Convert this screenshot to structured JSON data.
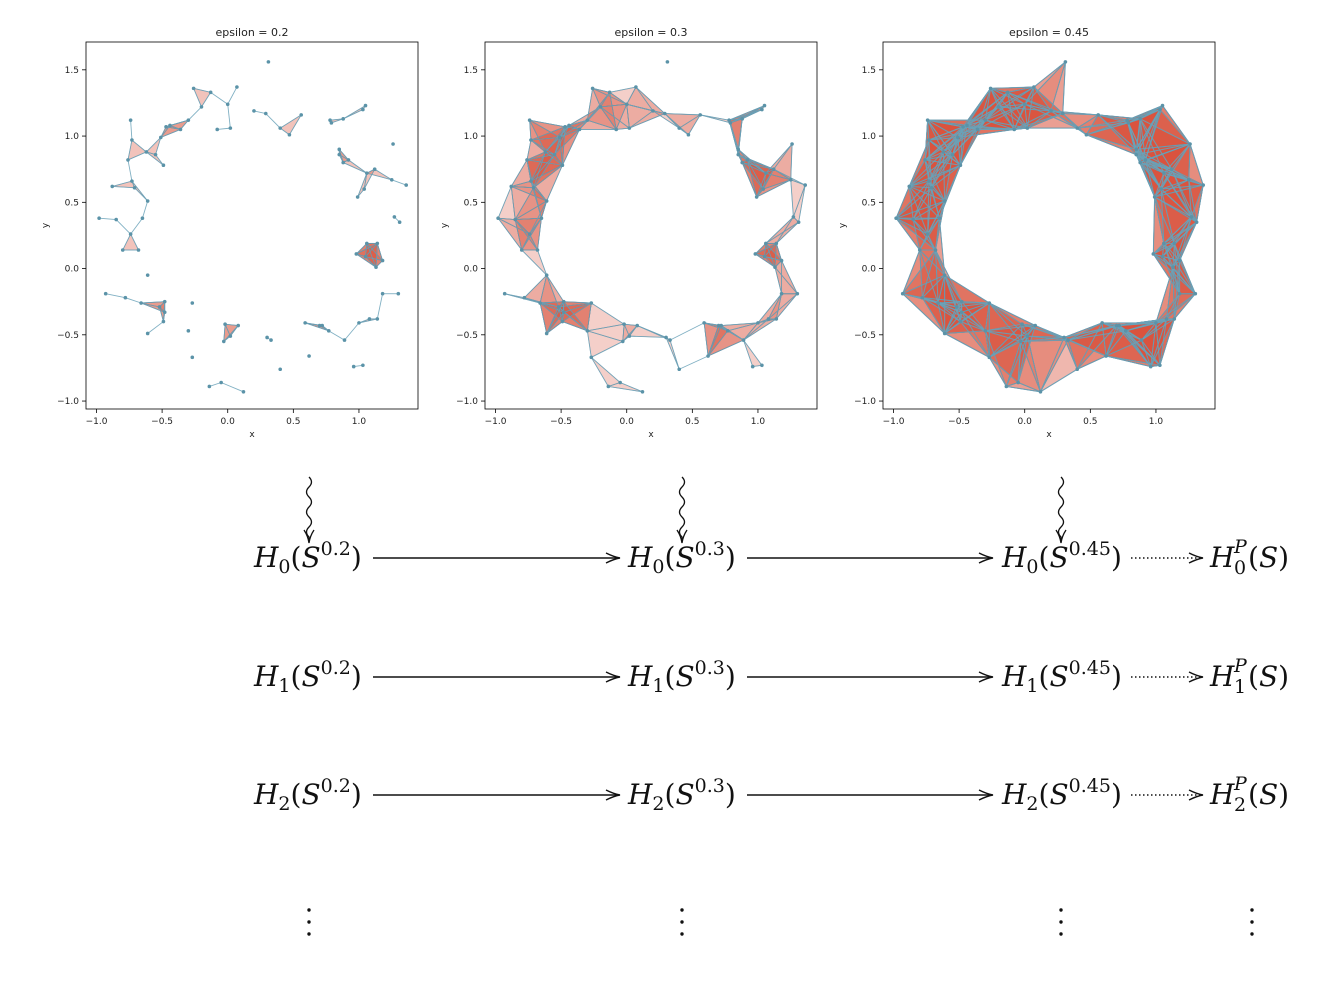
{
  "figure": {
    "panels": [
      {
        "title": "epsilon = 0.2",
        "xlabel": "x",
        "ylabel": "y",
        "epsilon": 0.2
      },
      {
        "title": "epsilon = 0.3",
        "xlabel": "x",
        "ylabel": "y",
        "epsilon": 0.3
      },
      {
        "title": "epsilon = 0.45",
        "xlabel": "x",
        "ylabel": "y",
        "epsilon": 0.45
      }
    ],
    "x_ticks": [
      "−1.0",
      "−0.5",
      "0.0",
      "0.5",
      "1.0"
    ],
    "x_tick_values": [
      -1.0,
      -0.5,
      0.0,
      0.5,
      1.0
    ],
    "y_ticks": [
      "1.5",
      "1.0",
      "0.5",
      "0.0",
      "−0.5",
      "−1.0"
    ],
    "y_tick_values": [
      1.5,
      1.0,
      0.5,
      0.0,
      -0.5,
      -1.0
    ],
    "xlim": [
      -1.08,
      1.45
    ],
    "ylim": [
      -1.06,
      1.71
    ],
    "colors": {
      "point": "#5b93a8",
      "edge": "#6aa2b8",
      "triangle": "#d9533d",
      "triangle_edge": "#5f7a8c",
      "axes": "#000000"
    },
    "points": [
      [
        0.31,
        1.56
      ],
      [
        -0.26,
        1.36
      ],
      [
        0.07,
        1.37
      ],
      [
        -0.13,
        1.33
      ],
      [
        0.0,
        1.24
      ],
      [
        0.2,
        1.19
      ],
      [
        0.29,
        1.17
      ],
      [
        -0.2,
        1.22
      ],
      [
        -0.3,
        1.12
      ],
      [
        -0.44,
        1.08
      ],
      [
        -0.36,
        1.05
      ],
      [
        -0.47,
        1.07
      ],
      [
        -0.08,
        1.05
      ],
      [
        0.02,
        1.06
      ],
      [
        0.4,
        1.06
      ],
      [
        0.47,
        1.01
      ],
      [
        0.56,
        1.16
      ],
      [
        -0.51,
        0.99
      ],
      [
        -0.62,
        0.88
      ],
      [
        -0.73,
        0.97
      ],
      [
        -0.74,
        1.12
      ],
      [
        -0.76,
        0.82
      ],
      [
        -0.55,
        0.86
      ],
      [
        -0.49,
        0.78
      ],
      [
        -0.88,
        0.62
      ],
      [
        -0.73,
        0.66
      ],
      [
        -0.71,
        0.61
      ],
      [
        -0.61,
        0.51
      ],
      [
        -0.65,
        0.38
      ],
      [
        -0.85,
        0.37
      ],
      [
        -0.98,
        0.38
      ],
      [
        -0.8,
        0.14
      ],
      [
        -0.68,
        0.14
      ],
      [
        -0.61,
        -0.05
      ],
      [
        -0.74,
        0.26
      ],
      [
        -0.93,
        -0.19
      ],
      [
        -0.78,
        -0.22
      ],
      [
        -0.66,
        -0.26
      ],
      [
        -0.52,
        -0.29
      ],
      [
        -0.48,
        -0.25
      ],
      [
        -0.48,
        -0.33
      ],
      [
        -0.61,
        -0.49
      ],
      [
        -0.49,
        -0.4
      ],
      [
        -0.3,
        -0.47
      ],
      [
        -0.27,
        -0.67
      ],
      [
        -0.27,
        -0.26
      ],
      [
        -0.02,
        -0.42
      ],
      [
        -0.03,
        -0.55
      ],
      [
        0.08,
        -0.43
      ],
      [
        0.02,
        -0.51
      ],
      [
        -0.14,
        -0.89
      ],
      [
        -0.05,
        -0.86
      ],
      [
        0.12,
        -0.93
      ],
      [
        0.3,
        -0.52
      ],
      [
        0.33,
        -0.54
      ],
      [
        0.4,
        -0.76
      ],
      [
        0.59,
        -0.41
      ],
      [
        0.62,
        -0.66
      ],
      [
        0.7,
        -0.43
      ],
      [
        0.72,
        -0.43
      ],
      [
        0.77,
        -0.47
      ],
      [
        0.89,
        -0.54
      ],
      [
        1.0,
        -0.41
      ],
      [
        1.08,
        -0.38
      ],
      [
        1.14,
        -0.38
      ],
      [
        0.96,
        -0.74
      ],
      [
        1.03,
        -0.73
      ],
      [
        1.18,
        -0.19
      ],
      [
        1.3,
        -0.19
      ],
      [
        0.98,
        0.11
      ],
      [
        1.06,
        0.19
      ],
      [
        1.14,
        0.19
      ],
      [
        1.18,
        0.06
      ],
      [
        1.13,
        0.01
      ],
      [
        1.05,
        0.09
      ],
      [
        1.27,
        0.39
      ],
      [
        1.31,
        0.35
      ],
      [
        0.99,
        0.54
      ],
      [
        1.04,
        0.6
      ],
      [
        1.06,
        0.72
      ],
      [
        1.12,
        0.75
      ],
      [
        1.25,
        0.67
      ],
      [
        1.36,
        0.63
      ],
      [
        1.26,
        0.94
      ],
      [
        0.85,
        0.86
      ],
      [
        0.88,
        0.8
      ],
      [
        0.92,
        0.82
      ],
      [
        0.78,
        1.12
      ],
      [
        0.79,
        1.1
      ],
      [
        0.88,
        1.13
      ],
      [
        1.03,
        1.2
      ],
      [
        1.05,
        1.23
      ],
      [
        0.85,
        0.9
      ]
    ],
    "ring": [
      [
        0.31,
        1.56
      ],
      [
        0.07,
        1.37
      ],
      [
        -0.26,
        1.36
      ],
      [
        -0.44,
        1.08
      ],
      [
        -0.62,
        0.88
      ],
      [
        -0.76,
        0.82
      ],
      [
        -0.88,
        0.62
      ],
      [
        -0.98,
        0.38
      ],
      [
        -0.8,
        0.14
      ],
      [
        -0.93,
        -0.19
      ],
      [
        -0.66,
        -0.26
      ],
      [
        -0.61,
        -0.49
      ],
      [
        -0.3,
        -0.47
      ],
      [
        -0.14,
        -0.89
      ],
      [
        0.12,
        -0.93
      ],
      [
        0.33,
        -0.54
      ],
      [
        0.4,
        -0.76
      ],
      [
        0.62,
        -0.66
      ],
      [
        0.89,
        -0.54
      ],
      [
        0.96,
        -0.74
      ],
      [
        1.08,
        -0.38
      ],
      [
        1.3,
        -0.19
      ],
      [
        1.18,
        0.06
      ],
      [
        1.31,
        0.35
      ],
      [
        1.36,
        0.63
      ],
      [
        1.25,
        0.94
      ],
      [
        1.05,
        1.23
      ],
      [
        0.78,
        1.12
      ],
      [
        0.56,
        1.16
      ],
      [
        0.4,
        1.06
      ],
      [
        0.31,
        1.56
      ]
    ]
  },
  "diagram": {
    "rows": [
      [
        "H₀(S⁰·²)",
        "H₀(S⁰·³)",
        "H₀(S⁰·⁴⁵)",
        "H₀ᴾ(S)"
      ],
      [
        "H₁(S⁰·²)",
        "H₁(S⁰·³)",
        "H₁(S⁰·⁴⁵)",
        "H₁ᴾ(S)"
      ],
      [
        "H₂(S⁰·²)",
        "H₂(S⁰·³)",
        "H₂(S⁰·⁴⁵)",
        "H₂ᴾ(S)"
      ]
    ],
    "terms": [
      {
        "H": "H",
        "sub": "0",
        "eps": "0.2"
      },
      {
        "H": "H",
        "sub": "0",
        "eps": "0.3"
      }
    ],
    "ellipsis": "⋮"
  }
}
